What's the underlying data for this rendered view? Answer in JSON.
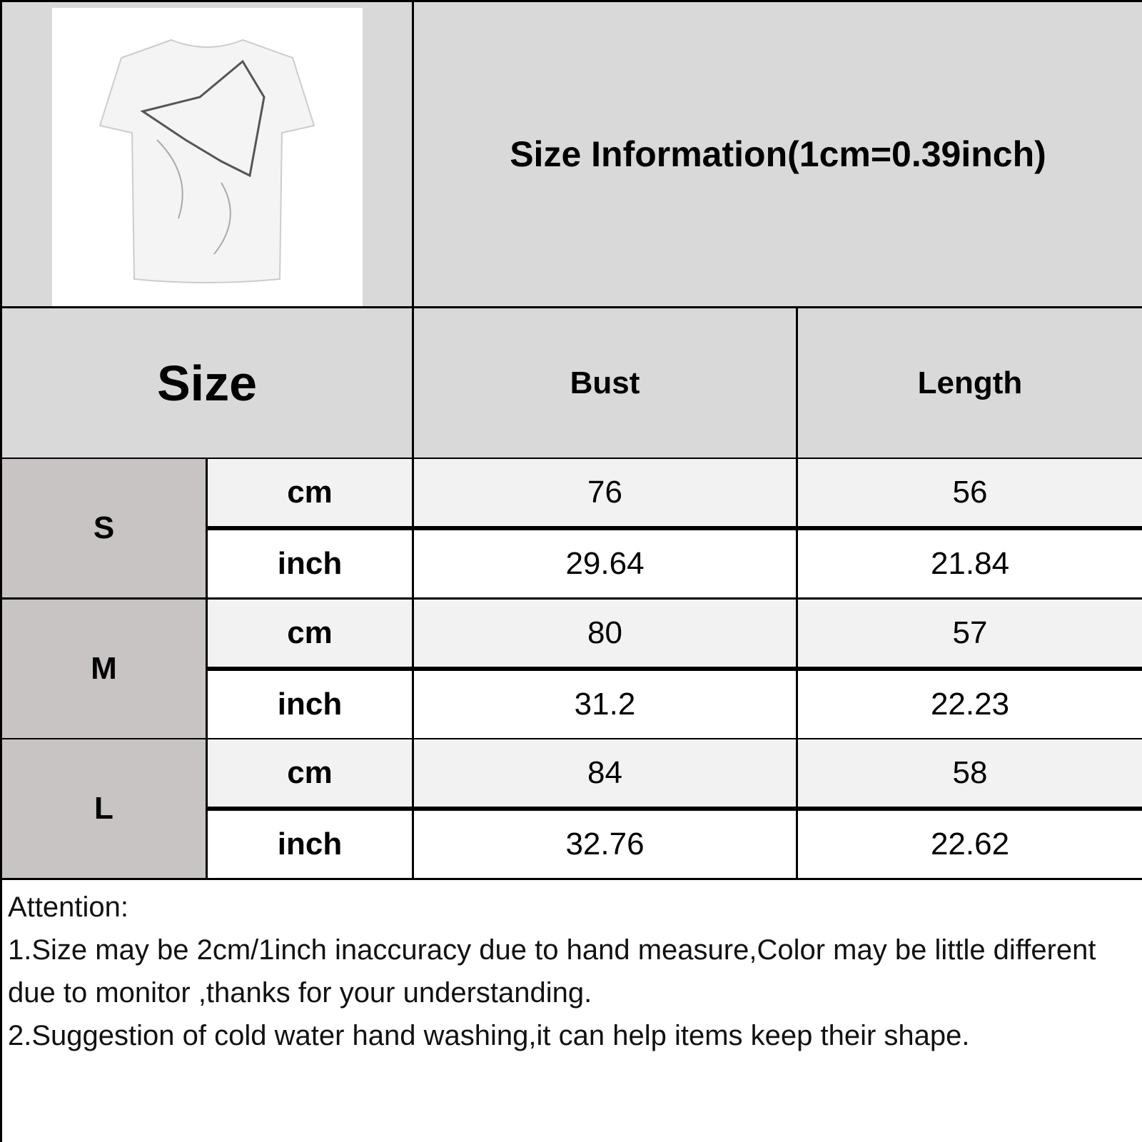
{
  "title": "Size Information(1cm=0.39inch)",
  "product_image": "white short-sleeve t-shirt with sketch print",
  "headers": {
    "size": "Size",
    "bust": "Bust",
    "length": "Length"
  },
  "rows": [
    {
      "size": "S",
      "cm": {
        "unit": "cm",
        "bust": "76",
        "length": "56"
      },
      "inch": {
        "unit": "inch",
        "bust": "29.64",
        "length": "21.84"
      }
    },
    {
      "size": "M",
      "cm": {
        "unit": "cm",
        "bust": "80",
        "length": "57"
      },
      "inch": {
        "unit": "inch",
        "bust": "31.2",
        "length": "22.23"
      }
    },
    {
      "size": "L",
      "cm": {
        "unit": "cm",
        "bust": "84",
        "length": "58"
      },
      "inch": {
        "unit": "inch",
        "bust": "32.76",
        "length": "22.62"
      }
    }
  ],
  "notes": {
    "heading": "Attention:",
    "line1": "1.Size may be 2cm/1inch inaccuracy due to hand measure,Color may be little different due to monitor ,thanks for your understanding.",
    "line2": "2.Suggestion of cold water hand washing,it can help items keep their shape."
  },
  "colors": {
    "header": "#d9d9d9",
    "size_cell": "#c8c4c4",
    "cm_row": "#f2f2f2",
    "inch_row": "#ffffff"
  }
}
